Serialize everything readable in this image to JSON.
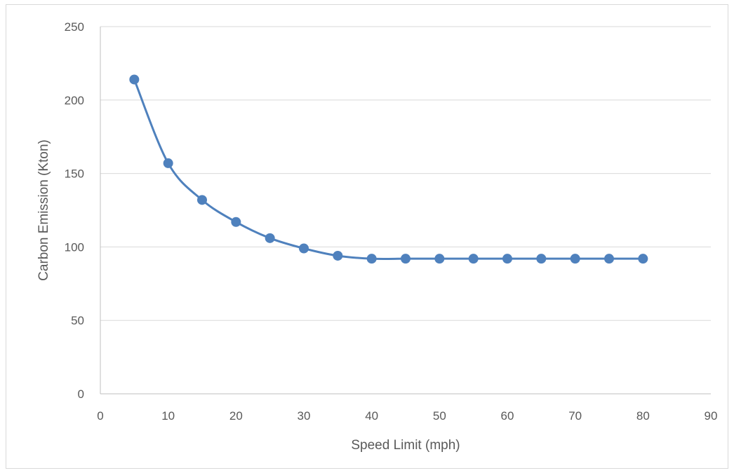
{
  "chart_data": {
    "type": "line",
    "title": "",
    "xlabel": "Speed Limit (mph)",
    "ylabel": "Carbon Emission (Kton)",
    "xlim": [
      0,
      90
    ],
    "ylim": [
      0,
      250
    ],
    "xticks": [
      0,
      10,
      20,
      30,
      40,
      50,
      60,
      70,
      80,
      90
    ],
    "yticks": [
      0,
      50,
      100,
      150,
      200,
      250
    ],
    "grid": "horizontal",
    "legend": "none",
    "smooth": true,
    "markers": true,
    "color": "#4f81bd",
    "series": [
      {
        "x": [
          5,
          10,
          15,
          20,
          25,
          30,
          35,
          40,
          45,
          50,
          55,
          60,
          65,
          70,
          75,
          80
        ],
        "values": [
          214,
          157,
          132,
          117,
          106,
          99,
          94,
          92,
          92,
          92,
          92,
          92,
          92,
          92,
          92,
          92
        ]
      }
    ]
  }
}
